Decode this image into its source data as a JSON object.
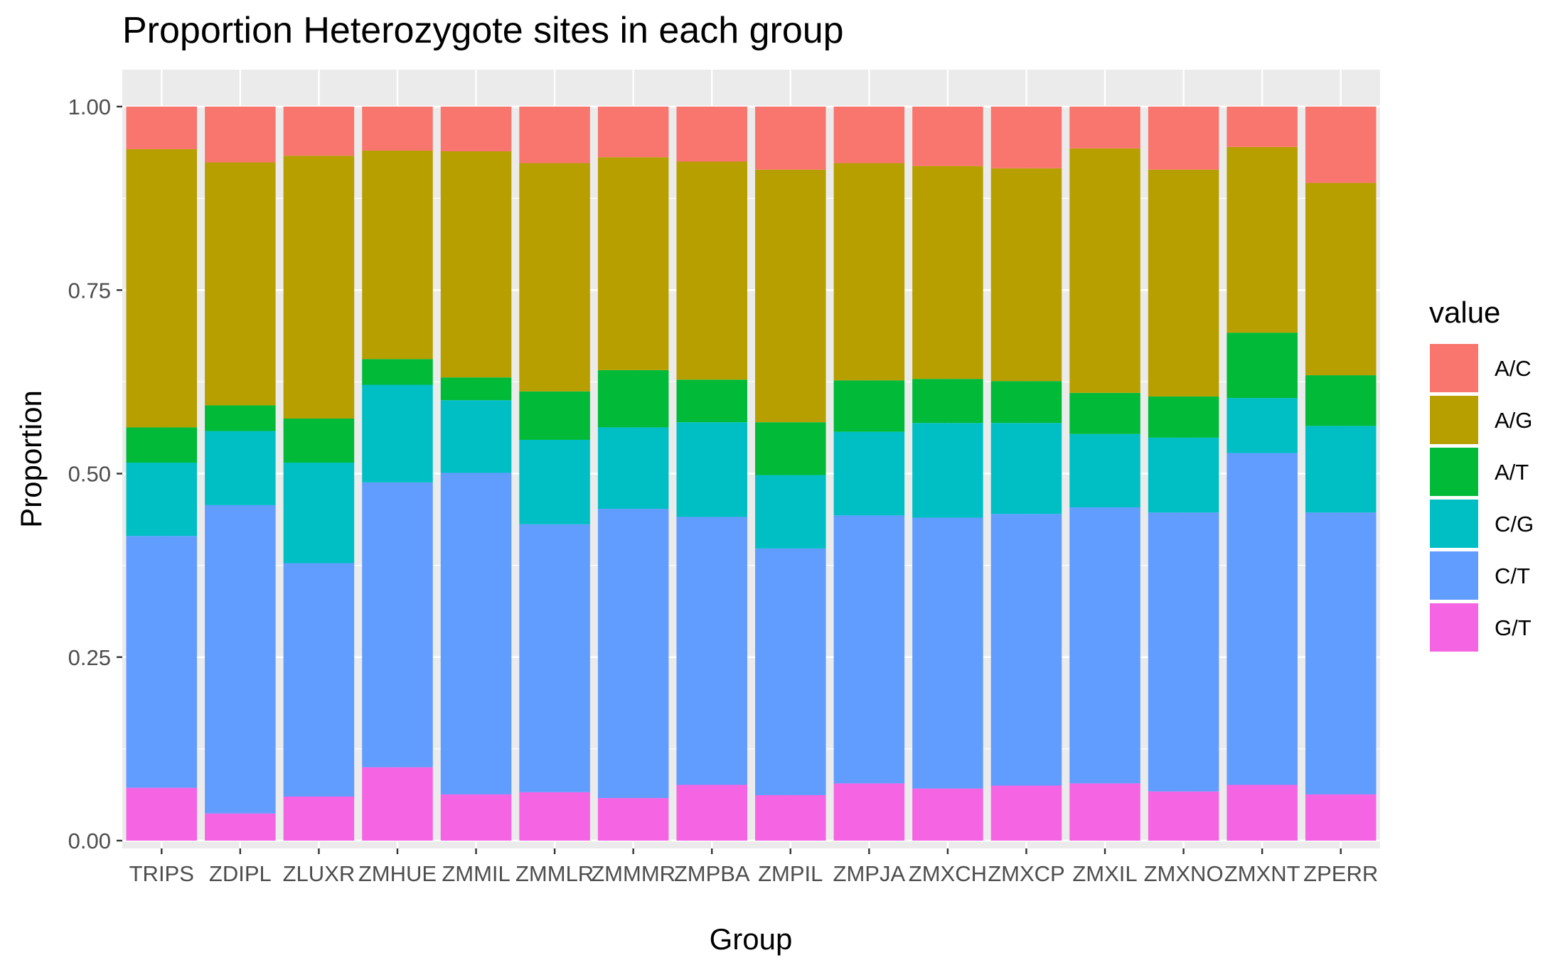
{
  "chart_data": {
    "type": "bar",
    "stacked": true,
    "title": "Proportion Heterozygote sites in each group",
    "xlabel": "Group",
    "ylabel": "Proportion",
    "ylim": [
      0,
      1.05
    ],
    "yticks": [
      0,
      0.25,
      0.5,
      0.75,
      1
    ],
    "ytick_labels": [
      "0.00",
      "0.25",
      "0.50",
      "0.75",
      "1.00"
    ],
    "grid": true,
    "legend_position": "right",
    "legend_title": "value",
    "categories": [
      "TRIPS",
      "ZDIPL",
      "ZLUXR",
      "ZMHUE",
      "ZMMIL",
      "ZMMLR",
      "ZMMMR",
      "ZMPBA",
      "ZMPIL",
      "ZMPJA",
      "ZMXCH",
      "ZMXCP",
      "ZMXIL",
      "ZMXNO",
      "ZMXNT",
      "ZPERR"
    ],
    "series": [
      {
        "name": "G/T",
        "color": "#F564E3",
        "values": [
          0.072,
          0.037,
          0.06,
          0.1,
          0.063,
          0.066,
          0.058,
          0.076,
          0.062,
          0.078,
          0.071,
          0.075,
          0.078,
          0.067,
          0.076,
          0.063
        ]
      },
      {
        "name": "C/T",
        "color": "#619CFF",
        "values": [
          0.343,
          0.42,
          0.318,
          0.388,
          0.438,
          0.365,
          0.394,
          0.365,
          0.336,
          0.365,
          0.369,
          0.37,
          0.376,
          0.38,
          0.452,
          0.384
        ]
      },
      {
        "name": "C/G",
        "color": "#00BFC4",
        "values": [
          0.1,
          0.101,
          0.137,
          0.133,
          0.099,
          0.115,
          0.111,
          0.129,
          0.1,
          0.114,
          0.129,
          0.124,
          0.1,
          0.102,
          0.075,
          0.118
        ]
      },
      {
        "name": "A/T",
        "color": "#00BA38",
        "values": [
          0.048,
          0.035,
          0.06,
          0.035,
          0.031,
          0.066,
          0.078,
          0.058,
          0.072,
          0.07,
          0.06,
          0.057,
          0.056,
          0.056,
          0.089,
          0.069
        ]
      },
      {
        "name": "A/G",
        "color": "#B79F00",
        "values": [
          0.379,
          0.331,
          0.358,
          0.284,
          0.308,
          0.311,
          0.29,
          0.297,
          0.344,
          0.296,
          0.29,
          0.29,
          0.333,
          0.309,
          0.253,
          0.262
        ]
      },
      {
        "name": "A/C",
        "color": "#F8766D",
        "values": [
          0.058,
          0.076,
          0.067,
          0.06,
          0.061,
          0.077,
          0.069,
          0.075,
          0.086,
          0.077,
          0.081,
          0.084,
          0.057,
          0.086,
          0.055,
          0.104
        ]
      }
    ],
    "legend_order": [
      "A/C",
      "A/G",
      "A/T",
      "C/G",
      "C/T",
      "G/T"
    ]
  }
}
